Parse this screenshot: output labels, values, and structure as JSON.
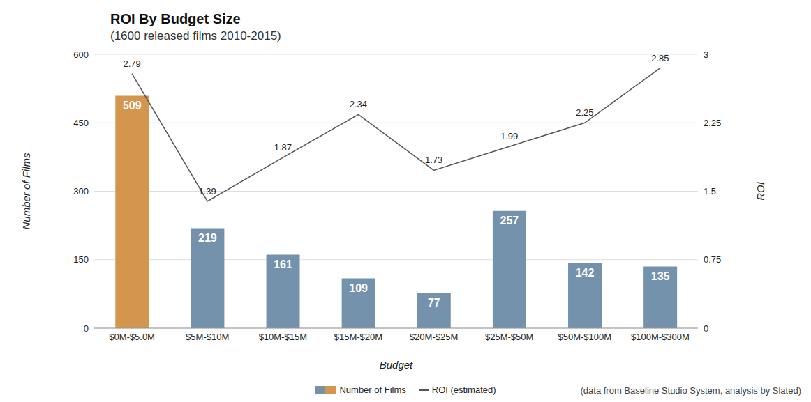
{
  "chart_data": {
    "type": "bar",
    "title": "ROI By Budget Size",
    "subtitle": "(1600 released films 2010-2015)",
    "x_label": "Budget",
    "y_label": "Number of Films",
    "y2_label": "ROI",
    "categories": [
      "$0M-$5.0M",
      "$5M-$10M",
      "$10M-$15M",
      "$15M-$20M",
      "$20M-$25M",
      "$25M-$50M",
      "$50M-$100M",
      "$100M-$300M"
    ],
    "series": [
      {
        "name": "Number of Films",
        "type": "bar",
        "colors": [
          "#d4954e",
          "#7592ad",
          "#7592ad",
          "#7592ad",
          "#7592ad",
          "#7592ad",
          "#7592ad",
          "#7592ad"
        ],
        "values": [
          509,
          219,
          161,
          109,
          77,
          257,
          142,
          135
        ]
      },
      {
        "name": "ROI (estimated)",
        "type": "line",
        "axis": "y2",
        "color": "#555555",
        "values": [
          2.79,
          1.39,
          1.87,
          2.34,
          1.73,
          1.99,
          2.25,
          2.85
        ]
      }
    ],
    "ylim": [
      0,
      600
    ],
    "yticks": [
      0,
      150,
      300,
      450,
      600
    ],
    "y2lim": [
      0,
      3
    ],
    "y2ticks": [
      0,
      0.75,
      1.5,
      2.25,
      3
    ],
    "grid": true,
    "data_labels": true,
    "legend": "bottom",
    "source": "(data from Baseline Studio System, analysis by Slated)"
  }
}
